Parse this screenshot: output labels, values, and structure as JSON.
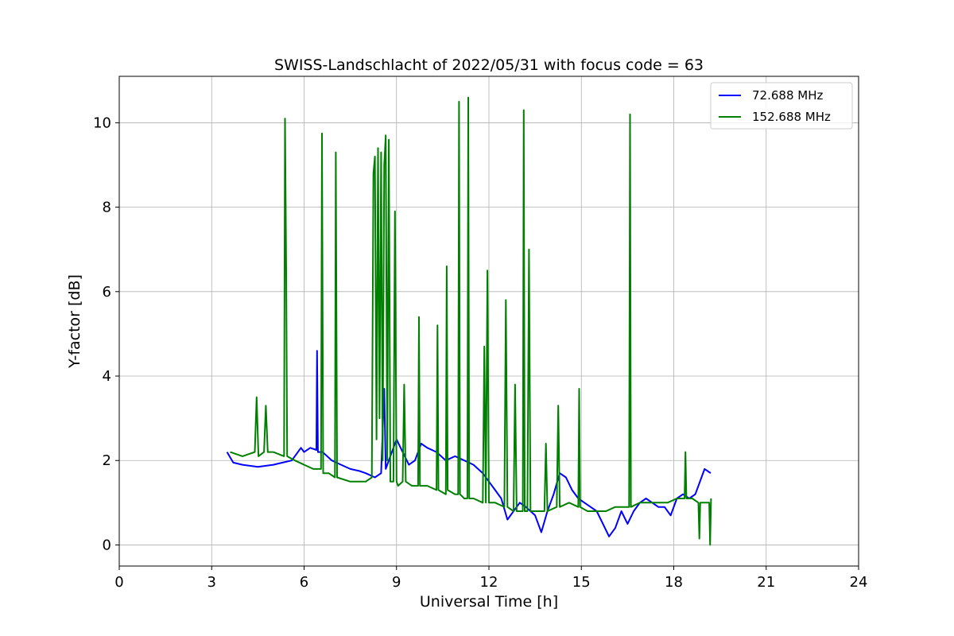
{
  "chart_data": {
    "type": "line",
    "title": "SWISS-Landschlacht of 2022/05/31 with focus code = 63",
    "xlabel": "Universal Time [h]",
    "ylabel": "Y-factor [dB]",
    "xlim": [
      0,
      24
    ],
    "ylim": [
      -0.5,
      11.1
    ],
    "xticks": [
      0,
      3,
      6,
      9,
      12,
      15,
      18,
      21,
      24
    ],
    "yticks": [
      0,
      2,
      4,
      6,
      8,
      10
    ],
    "grid": true,
    "legend_position": "top-right",
    "series": [
      {
        "name": " 72.688 MHz",
        "color": "#0000ff",
        "x": [
          3.5,
          3.7,
          4.0,
          4.5,
          5.0,
          5.3,
          5.6,
          5.9,
          6.0,
          6.2,
          6.4,
          6.42,
          6.45,
          6.6,
          6.9,
          7.2,
          7.5,
          7.8,
          8.0,
          8.3,
          8.5,
          8.6,
          8.65,
          8.8,
          9.0,
          9.2,
          9.4,
          9.6,
          9.8,
          10.0,
          10.3,
          10.6,
          10.9,
          11.2,
          11.5,
          11.8,
          12.0,
          12.2,
          12.4,
          12.6,
          12.8,
          13.0,
          13.2,
          13.5,
          13.7,
          13.9,
          14.1,
          14.3,
          14.5,
          14.7,
          14.9,
          15.1,
          15.3,
          15.5,
          15.7,
          15.9,
          16.1,
          16.3,
          16.5,
          16.7,
          16.9,
          17.1,
          17.3,
          17.5,
          17.7,
          17.9,
          18.1,
          18.3,
          18.5,
          18.7,
          18.9,
          19.0,
          19.2
        ],
        "values": [
          2.2,
          1.95,
          1.9,
          1.85,
          1.9,
          1.95,
          2.0,
          2.3,
          2.2,
          2.3,
          2.25,
          4.6,
          2.2,
          2.2,
          2.0,
          1.9,
          1.8,
          1.75,
          1.7,
          1.6,
          1.7,
          3.7,
          1.8,
          2.1,
          2.5,
          2.2,
          1.9,
          2.0,
          2.4,
          2.3,
          2.2,
          2.0,
          2.1,
          2.0,
          1.9,
          1.7,
          1.5,
          1.3,
          1.1,
          0.6,
          0.8,
          1.0,
          0.9,
          0.7,
          0.3,
          0.8,
          1.2,
          1.7,
          1.6,
          1.3,
          1.1,
          1.0,
          0.9,
          0.8,
          0.5,
          0.2,
          0.4,
          0.8,
          0.5,
          0.8,
          1.0,
          1.1,
          1.0,
          0.9,
          0.9,
          0.7,
          1.1,
          1.2,
          1.1,
          1.2,
          1.6,
          1.8,
          1.7
        ]
      },
      {
        "name": "152.688 MHz",
        "color": "#008000",
        "x": [
          3.6,
          4.0,
          4.4,
          4.46,
          4.52,
          4.7,
          4.76,
          4.82,
          5.0,
          5.35,
          5.38,
          5.42,
          5.45,
          5.7,
          6.0,
          6.3,
          6.55,
          6.58,
          6.62,
          6.8,
          7.0,
          7.03,
          7.07,
          7.5,
          8.0,
          8.2,
          8.25,
          8.3,
          8.35,
          8.4,
          8.45,
          8.5,
          8.55,
          8.6,
          8.65,
          8.7,
          8.75,
          8.8,
          8.9,
          8.95,
          9.0,
          9.05,
          9.2,
          9.25,
          9.3,
          9.5,
          9.7,
          9.73,
          9.76,
          10.0,
          10.3,
          10.33,
          10.36,
          10.6,
          10.63,
          10.66,
          10.9,
          11.0,
          11.03,
          11.06,
          11.2,
          11.3,
          11.33,
          11.36,
          11.5,
          11.8,
          11.85,
          11.9,
          11.95,
          12.0,
          12.05,
          12.2,
          12.5,
          12.55,
          12.6,
          12.8,
          12.85,
          12.9,
          13.0,
          13.1,
          13.13,
          13.16,
          13.25,
          13.3,
          13.35,
          13.6,
          13.8,
          13.85,
          13.9,
          14.2,
          14.25,
          14.3,
          14.6,
          14.9,
          14.93,
          14.96,
          15.2,
          15.5,
          15.8,
          16.1,
          16.4,
          16.55,
          16.58,
          16.61,
          16.9,
          17.2,
          17.5,
          17.8,
          18.1,
          18.35,
          18.38,
          18.41,
          18.6,
          18.8,
          18.83,
          18.86,
          19.0,
          19.15,
          19.18,
          19.21
        ],
        "values": [
          2.2,
          2.1,
          2.2,
          3.5,
          2.1,
          2.2,
          3.3,
          2.2,
          2.2,
          2.1,
          10.1,
          6.5,
          2.1,
          2.0,
          1.9,
          1.8,
          1.8,
          9.75,
          1.7,
          1.7,
          1.6,
          9.3,
          1.6,
          1.5,
          1.5,
          1.6,
          8.8,
          9.2,
          2.5,
          9.4,
          3.0,
          9.3,
          2.0,
          9.0,
          9.7,
          2.0,
          9.6,
          1.5,
          1.5,
          7.9,
          1.5,
          1.4,
          1.5,
          3.8,
          1.5,
          1.4,
          1.4,
          5.4,
          1.4,
          1.4,
          1.3,
          5.2,
          1.3,
          1.2,
          6.6,
          1.3,
          1.2,
          1.2,
          10.5,
          1.2,
          1.1,
          1.1,
          10.6,
          1.1,
          1.1,
          1.0,
          4.7,
          1.0,
          6.5,
          1.0,
          1.0,
          1.0,
          0.9,
          5.8,
          0.9,
          0.8,
          3.8,
          0.8,
          0.8,
          0.8,
          10.3,
          0.8,
          0.8,
          7.0,
          0.8,
          0.8,
          0.8,
          2.4,
          0.8,
          0.9,
          3.3,
          0.9,
          1.0,
          0.9,
          3.7,
          0.9,
          0.8,
          0.8,
          0.8,
          0.9,
          0.9,
          0.9,
          10.2,
          0.9,
          1.0,
          1.0,
          1.0,
          1.0,
          1.1,
          1.1,
          2.2,
          1.1,
          1.1,
          1.0,
          0.15,
          1.0,
          1.0,
          1.0,
          0.0,
          1.1
        ]
      }
    ]
  }
}
